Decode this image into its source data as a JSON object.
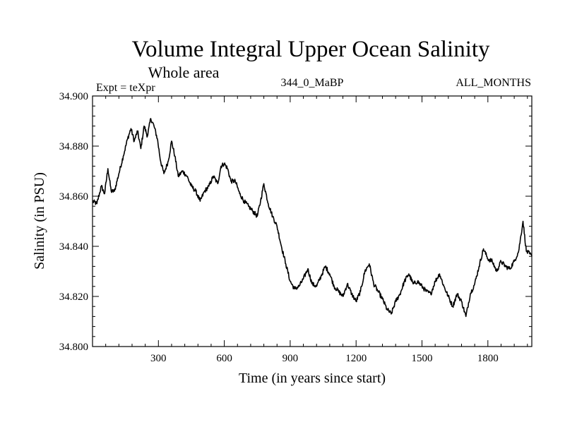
{
  "chart_data": {
    "type": "line",
    "title": "Volume Integral Upper Ocean Salinity",
    "subtitle": "Whole area",
    "annotations": {
      "left": "Expt = teXpr",
      "center": "344_0_MaBP",
      "right": "ALL_MONTHS"
    },
    "xlabel": "Time (in years since start)",
    "ylabel": "Salinity (in PSU)",
    "xlim": [
      0,
      2000
    ],
    "ylim": [
      34.8,
      34.9
    ],
    "xticks": [
      300,
      600,
      900,
      1200,
      1500,
      1800
    ],
    "xtick_labels": [
      "300",
      "600",
      "900",
      "1200",
      "1500",
      "1800"
    ],
    "yticks": [
      34.8,
      34.82,
      34.84,
      34.86,
      34.88,
      34.9
    ],
    "ytick_labels": [
      "34.800",
      "34.820",
      "34.840",
      "34.860",
      "34.880",
      "34.900"
    ],
    "grid": false,
    "line_color": "#000000",
    "series": [
      {
        "x": [
          0,
          20,
          40,
          55,
          70,
          85,
          100,
          120,
          140,
          160,
          175,
          190,
          205,
          220,
          235,
          250,
          265,
          280,
          295,
          310,
          325,
          345,
          360,
          375,
          390,
          410,
          430,
          450,
          470,
          490,
          510,
          530,
          550,
          570,
          585,
          600,
          615,
          630,
          650,
          670,
          690,
          710,
          730,
          750,
          765,
          780,
          800,
          820,
          840,
          860,
          880,
          900,
          920,
          940,
          960,
          980,
          1000,
          1020,
          1040,
          1060,
          1080,
          1100,
          1120,
          1140,
          1160,
          1180,
          1200,
          1220,
          1240,
          1260,
          1280,
          1300,
          1320,
          1340,
          1360,
          1380,
          1400,
          1420,
          1440,
          1460,
          1480,
          1500,
          1520,
          1540,
          1560,
          1580,
          1600,
          1620,
          1640,
          1660,
          1680,
          1700,
          1720,
          1740,
          1760,
          1780,
          1800,
          1820,
          1840,
          1860,
          1880,
          1900,
          1920,
          1940,
          1960,
          1975,
          1990,
          2000
        ],
        "y": [
          34.858,
          34.857,
          34.864,
          34.861,
          34.871,
          34.862,
          34.862,
          34.869,
          34.876,
          34.883,
          34.887,
          34.882,
          34.886,
          34.879,
          34.888,
          34.884,
          34.891,
          34.888,
          34.883,
          34.874,
          34.869,
          34.874,
          34.882,
          34.876,
          34.868,
          34.87,
          34.868,
          34.864,
          34.862,
          34.858,
          34.862,
          34.864,
          34.868,
          34.865,
          34.872,
          34.873,
          34.871,
          34.866,
          34.866,
          34.861,
          34.858,
          34.856,
          34.854,
          34.852,
          34.858,
          34.865,
          34.857,
          34.852,
          34.848,
          34.84,
          34.833,
          34.826,
          34.823,
          34.824,
          34.827,
          34.831,
          34.825,
          34.824,
          34.828,
          34.832,
          34.829,
          34.824,
          34.822,
          34.82,
          34.825,
          34.821,
          34.818,
          34.822,
          34.83,
          34.833,
          34.825,
          34.822,
          34.819,
          34.815,
          34.813,
          34.818,
          34.821,
          34.826,
          34.829,
          34.825,
          34.826,
          34.824,
          34.822,
          34.821,
          34.826,
          34.829,
          34.824,
          34.82,
          34.816,
          34.821,
          34.818,
          34.812,
          34.821,
          34.825,
          34.832,
          34.839,
          34.835,
          34.834,
          34.83,
          34.834,
          34.832,
          34.831,
          34.834,
          34.838,
          34.85,
          34.838,
          34.837,
          34.836
        ]
      }
    ]
  }
}
